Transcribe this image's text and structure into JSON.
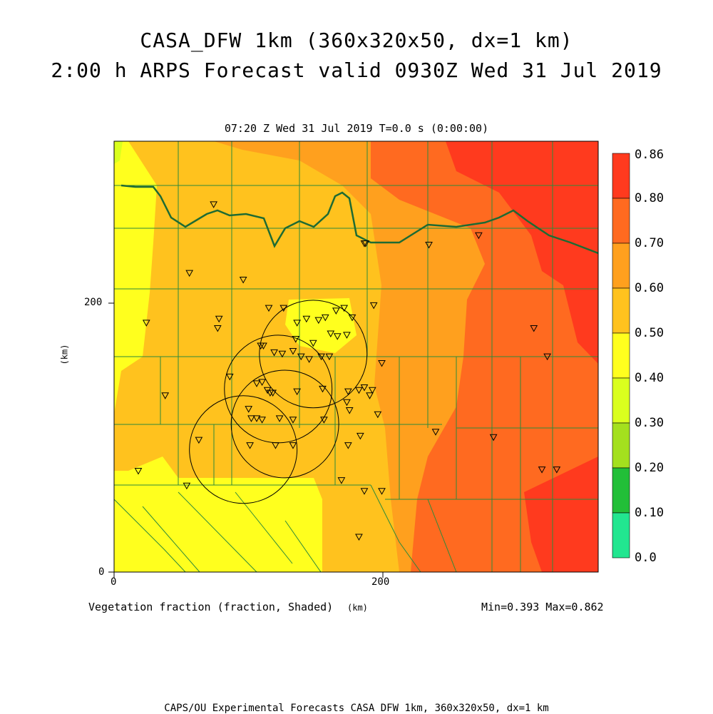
{
  "title_line1": "CASA_DFW 1km (360x320x50, dx=1 km)",
  "title_line2": "2:00 h ARPS Forecast valid 0930Z Wed 31 Jul 2019",
  "subtitle": "07:20 Z Wed 31 Jul 2019    T=0.0 s (0:00:00)",
  "variable_label": "Vegetation fraction (fraction, Shaded)",
  "x_unit": "(km)",
  "y_unit": "(km)",
  "minmax": "Min=0.393 Max=0.862",
  "footer": "CAPS/OU Experimental Forecasts  CASA DFW 1km, 360x320x50, dx=1 km",
  "axes": {
    "x_ticks": [
      {
        "value": 0,
        "label": "0"
      },
      {
        "value": 200,
        "label": "200"
      }
    ],
    "y_ticks": [
      {
        "value": 0,
        "label": "0"
      },
      {
        "value": 200,
        "label": "200"
      }
    ],
    "x_range_km": [
      0,
      360
    ],
    "y_range_km": [
      0,
      320
    ]
  },
  "colorbar": {
    "labels": [
      "0.86",
      "0.80",
      "0.70",
      "0.60",
      "0.50",
      "0.40",
      "0.30",
      "0.20",
      "0.10",
      "0.0"
    ],
    "colors": [
      "#ff3a1e",
      "#ff6a20",
      "#ffa01e",
      "#ffc21e",
      "#ffff1e",
      "#daff1e",
      "#a4e01e",
      "#22bf38",
      "#22e690"
    ]
  },
  "radar_circles_km": [
    {
      "x": 148,
      "y": 162
    },
    {
      "x": 122,
      "y": 136
    },
    {
      "x": 127,
      "y": 110
    },
    {
      "x": 96,
      "y": 91
    }
  ],
  "stations_km": [
    [
      74,
      273
    ],
    [
      56,
      222
    ],
    [
      96,
      217
    ],
    [
      187,
      244
    ],
    [
      186,
      244
    ],
    [
      234,
      243
    ],
    [
      271,
      250
    ],
    [
      24,
      185
    ],
    [
      78,
      188
    ],
    [
      77,
      181
    ],
    [
      115,
      196
    ],
    [
      126,
      196
    ],
    [
      143,
      188
    ],
    [
      136,
      185
    ],
    [
      152,
      187
    ],
    [
      157,
      189
    ],
    [
      165,
      194
    ],
    [
      177,
      189
    ],
    [
      193,
      198
    ],
    [
      171,
      196
    ],
    [
      148,
      170
    ],
    [
      161,
      177
    ],
    [
      173,
      176
    ],
    [
      166,
      175
    ],
    [
      135,
      173
    ],
    [
      109,
      168
    ],
    [
      111,
      168
    ],
    [
      119,
      163
    ],
    [
      133,
      164
    ],
    [
      125,
      162
    ],
    [
      145,
      158
    ],
    [
      139,
      160
    ],
    [
      154,
      160
    ],
    [
      160,
      160
    ],
    [
      199,
      155
    ],
    [
      312,
      181
    ],
    [
      322,
      160
    ],
    [
      86,
      145
    ],
    [
      106,
      140
    ],
    [
      110,
      141
    ],
    [
      114,
      135
    ],
    [
      118,
      133
    ],
    [
      116,
      133
    ],
    [
      136,
      134
    ],
    [
      155,
      136
    ],
    [
      174,
      134
    ],
    [
      182,
      135
    ],
    [
      186,
      137
    ],
    [
      190,
      131
    ],
    [
      192,
      135
    ],
    [
      173,
      126
    ],
    [
      175,
      120
    ],
    [
      196,
      117
    ],
    [
      38,
      131
    ],
    [
      100,
      121
    ],
    [
      102,
      114
    ],
    [
      106,
      114
    ],
    [
      110,
      113
    ],
    [
      123,
      114
    ],
    [
      133,
      113
    ],
    [
      156,
      113
    ],
    [
      174,
      94
    ],
    [
      63,
      98
    ],
    [
      101,
      94
    ],
    [
      120,
      94
    ],
    [
      133,
      94
    ],
    [
      183,
      101
    ],
    [
      282,
      100
    ],
    [
      239,
      104
    ],
    [
      18,
      75
    ],
    [
      54,
      64
    ],
    [
      169,
      68
    ],
    [
      186,
      60
    ],
    [
      182,
      26
    ],
    [
      318,
      76
    ],
    [
      329,
      76
    ],
    [
      199,
      60
    ]
  ]
}
